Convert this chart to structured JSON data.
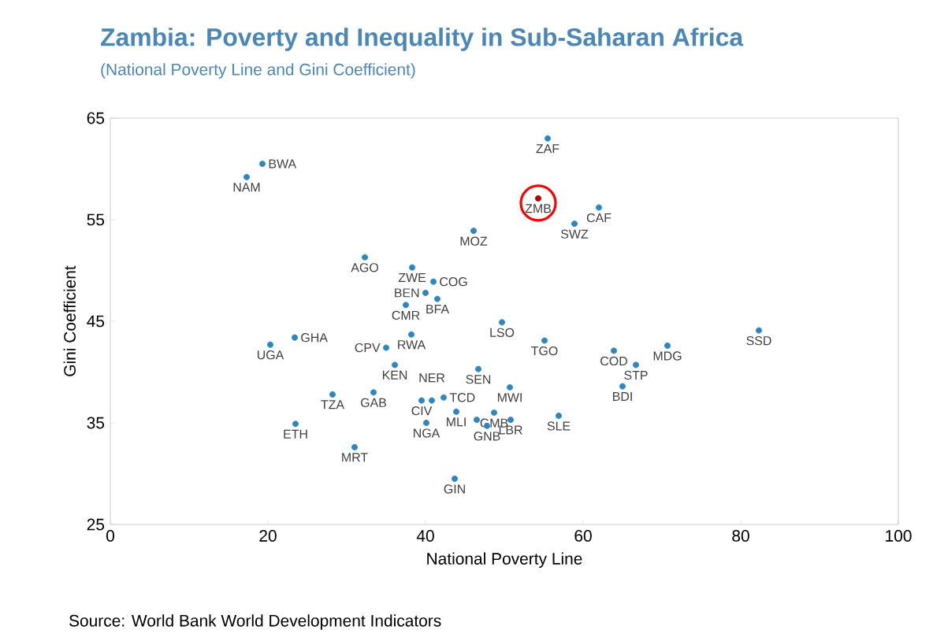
{
  "chart_data": {
    "type": "scatter",
    "title": "Zambia: Poverty and Inequality in Sub-Saharan Africa",
    "subtitle": "(National Poverty Line and Gini Coefficient)",
    "xlabel": "National Poverty Line",
    "ylabel": "Gini Coefficient",
    "xlim": [
      0,
      100
    ],
    "ylim": [
      25,
      65
    ],
    "xticks": [
      0,
      20,
      40,
      60,
      80,
      100
    ],
    "yticks": [
      25,
      35,
      45,
      55,
      65
    ],
    "grid": false,
    "series": [
      {
        "color": "#2e86c1",
        "x": [
          19.3,
          17.3,
          46.1,
          32.3,
          38.3,
          41.0,
          40.0,
          41.5,
          37.5,
          38.2,
          35.0,
          36.1,
          55.5,
          62.0,
          58.9,
          49.7,
          55.1,
          82.3,
          63.9,
          70.7,
          66.7,
          65.0,
          46.7,
          50.7,
          56.9,
          43.7,
          39.5,
          40.8,
          42.3,
          43.9,
          46.5,
          47.8,
          48.7,
          50.8,
          20.3,
          23.4,
          28.2,
          33.4,
          23.5,
          31.0,
          40.1
        ],
        "values": [
          60.5,
          59.2,
          53.9,
          51.3,
          50.3,
          48.9,
          47.8,
          47.2,
          46.6,
          43.7,
          42.4,
          40.7,
          63.0,
          56.2,
          54.6,
          44.9,
          43.1,
          44.1,
          42.1,
          42.6,
          40.7,
          38.6,
          40.3,
          38.5,
          35.7,
          29.5,
          37.2,
          37.2,
          37.5,
          36.1,
          35.3,
          34.7,
          36.0,
          35.3,
          42.7,
          43.4,
          37.8,
          38.0,
          34.9,
          32.6,
          35.0
        ]
      },
      {
        "color": "#c00000",
        "x": [
          54.3
        ],
        "values": [
          57.1
        ]
      }
    ],
    "annotations": [
      {
        "text": "BWA",
        "x": 19.3,
        "y": 60.5
      },
      {
        "text": "NAM",
        "x": 17.3,
        "y": 59.2
      },
      {
        "text": "MOZ",
        "x": 46.1,
        "y": 53.9
      },
      {
        "text": "AGO",
        "x": 32.3,
        "y": 51.3
      },
      {
        "text": "ZWE",
        "x": 38.3,
        "y": 50.3
      },
      {
        "text": "COG",
        "x": 41.0,
        "y": 48.9
      },
      {
        "text": "BEN",
        "x": 40.0,
        "y": 47.8
      },
      {
        "text": "BFA",
        "x": 41.5,
        "y": 47.2
      },
      {
        "text": "CMR",
        "x": 37.5,
        "y": 46.6
      },
      {
        "text": "RWA",
        "x": 38.2,
        "y": 43.7
      },
      {
        "text": "CPV",
        "x": 35.0,
        "y": 42.4
      },
      {
        "text": "KEN",
        "x": 36.1,
        "y": 40.7
      },
      {
        "text": "ZAF",
        "x": 55.5,
        "y": 63.0
      },
      {
        "text": "ZMB",
        "x": 54.3,
        "y": 57.1
      },
      {
        "text": "CAF",
        "x": 62.0,
        "y": 56.2
      },
      {
        "text": "SWZ",
        "x": 58.9,
        "y": 54.6
      },
      {
        "text": "LSO",
        "x": 49.7,
        "y": 44.9
      },
      {
        "text": "TGO",
        "x": 55.1,
        "y": 43.1
      },
      {
        "text": "SSD",
        "x": 82.3,
        "y": 44.1
      },
      {
        "text": "COD",
        "x": 63.9,
        "y": 42.1
      },
      {
        "text": "MDG",
        "x": 70.7,
        "y": 42.6
      },
      {
        "text": "STP",
        "x": 66.7,
        "y": 40.7
      },
      {
        "text": "BDI",
        "x": 65.0,
        "y": 38.6
      },
      {
        "text": "SEN",
        "x": 46.7,
        "y": 40.3
      },
      {
        "text": "MWI",
        "x": 50.7,
        "y": 38.5
      },
      {
        "text": "SLE",
        "x": 56.9,
        "y": 35.7
      },
      {
        "text": "GIN",
        "x": 43.7,
        "y": 29.5
      },
      {
        "text": "CIV",
        "x": 39.5,
        "y": 37.2
      },
      {
        "text": "NER",
        "x": 40.8,
        "y": 37.2
      },
      {
        "text": "TCD",
        "x": 42.3,
        "y": 37.5
      },
      {
        "text": "MLI",
        "x": 43.9,
        "y": 36.1
      },
      {
        "text": "GNB",
        "x": 47.8,
        "y": 34.7
      },
      {
        "text": "GMB",
        "x": 48.7,
        "y": 36.0
      },
      {
        "text": "LBR",
        "x": 50.8,
        "y": 35.3
      },
      {
        "text": "UGA",
        "x": 20.3,
        "y": 42.7
      },
      {
        "text": "GHA",
        "x": 23.4,
        "y": 43.4
      },
      {
        "text": "TZA",
        "x": 28.2,
        "y": 37.8
      },
      {
        "text": "GAB",
        "x": 33.4,
        "y": 38.0
      },
      {
        "text": "ETH",
        "x": 23.5,
        "y": 34.9
      },
      {
        "text": "MRT",
        "x": 31.0,
        "y": 32.6
      },
      {
        "text": "NGA",
        "x": 40.1,
        "y": 35.0
      },
      "Source: World Bank World Development Indicators"
    ]
  }
}
